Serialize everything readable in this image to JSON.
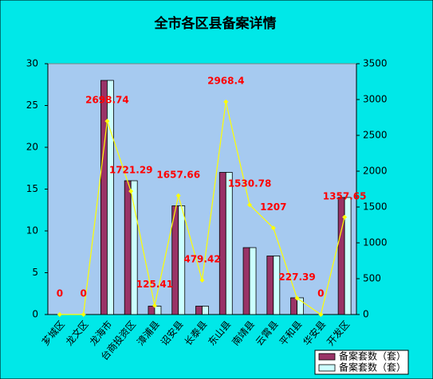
{
  "chart_data": {
    "type": "bar",
    "title": "全市各区县备案详情",
    "categories": [
      "芗城区",
      "龙文区",
      "龙海市",
      "台商投资区",
      "漳浦县",
      "诏安县",
      "长泰县",
      "东山县",
      "南靖县",
      "云霄县",
      "平和县",
      "华安县",
      "开发区"
    ],
    "series": [
      {
        "name": "备案套数（套）",
        "color": "#993366",
        "values": [
          0,
          0,
          28,
          16,
          1,
          13,
          1,
          17,
          8,
          7,
          2,
          0,
          14
        ]
      },
      {
        "name": "备案套数（套）",
        "color": "#ccffff",
        "values": [
          0,
          0,
          28,
          16,
          1,
          13,
          1,
          17,
          8,
          7,
          2,
          0,
          14
        ]
      },
      {
        "type": "line",
        "axis": "y2",
        "color": "#ffff00",
        "values": [
          0,
          0,
          2698.74,
          1721.29,
          125.41,
          1657.66,
          479.42,
          2968.4,
          1530.78,
          1207,
          227.39,
          0,
          1357.65
        ]
      }
    ],
    "ylim": [
      0,
      30
    ],
    "yticks": [
      0,
      5,
      10,
      15,
      20,
      25,
      30
    ],
    "y2lim": [
      0,
      3500
    ],
    "y2ticks": [
      0,
      500,
      1000,
      1500,
      2000,
      2500,
      3000,
      3500
    ]
  }
}
